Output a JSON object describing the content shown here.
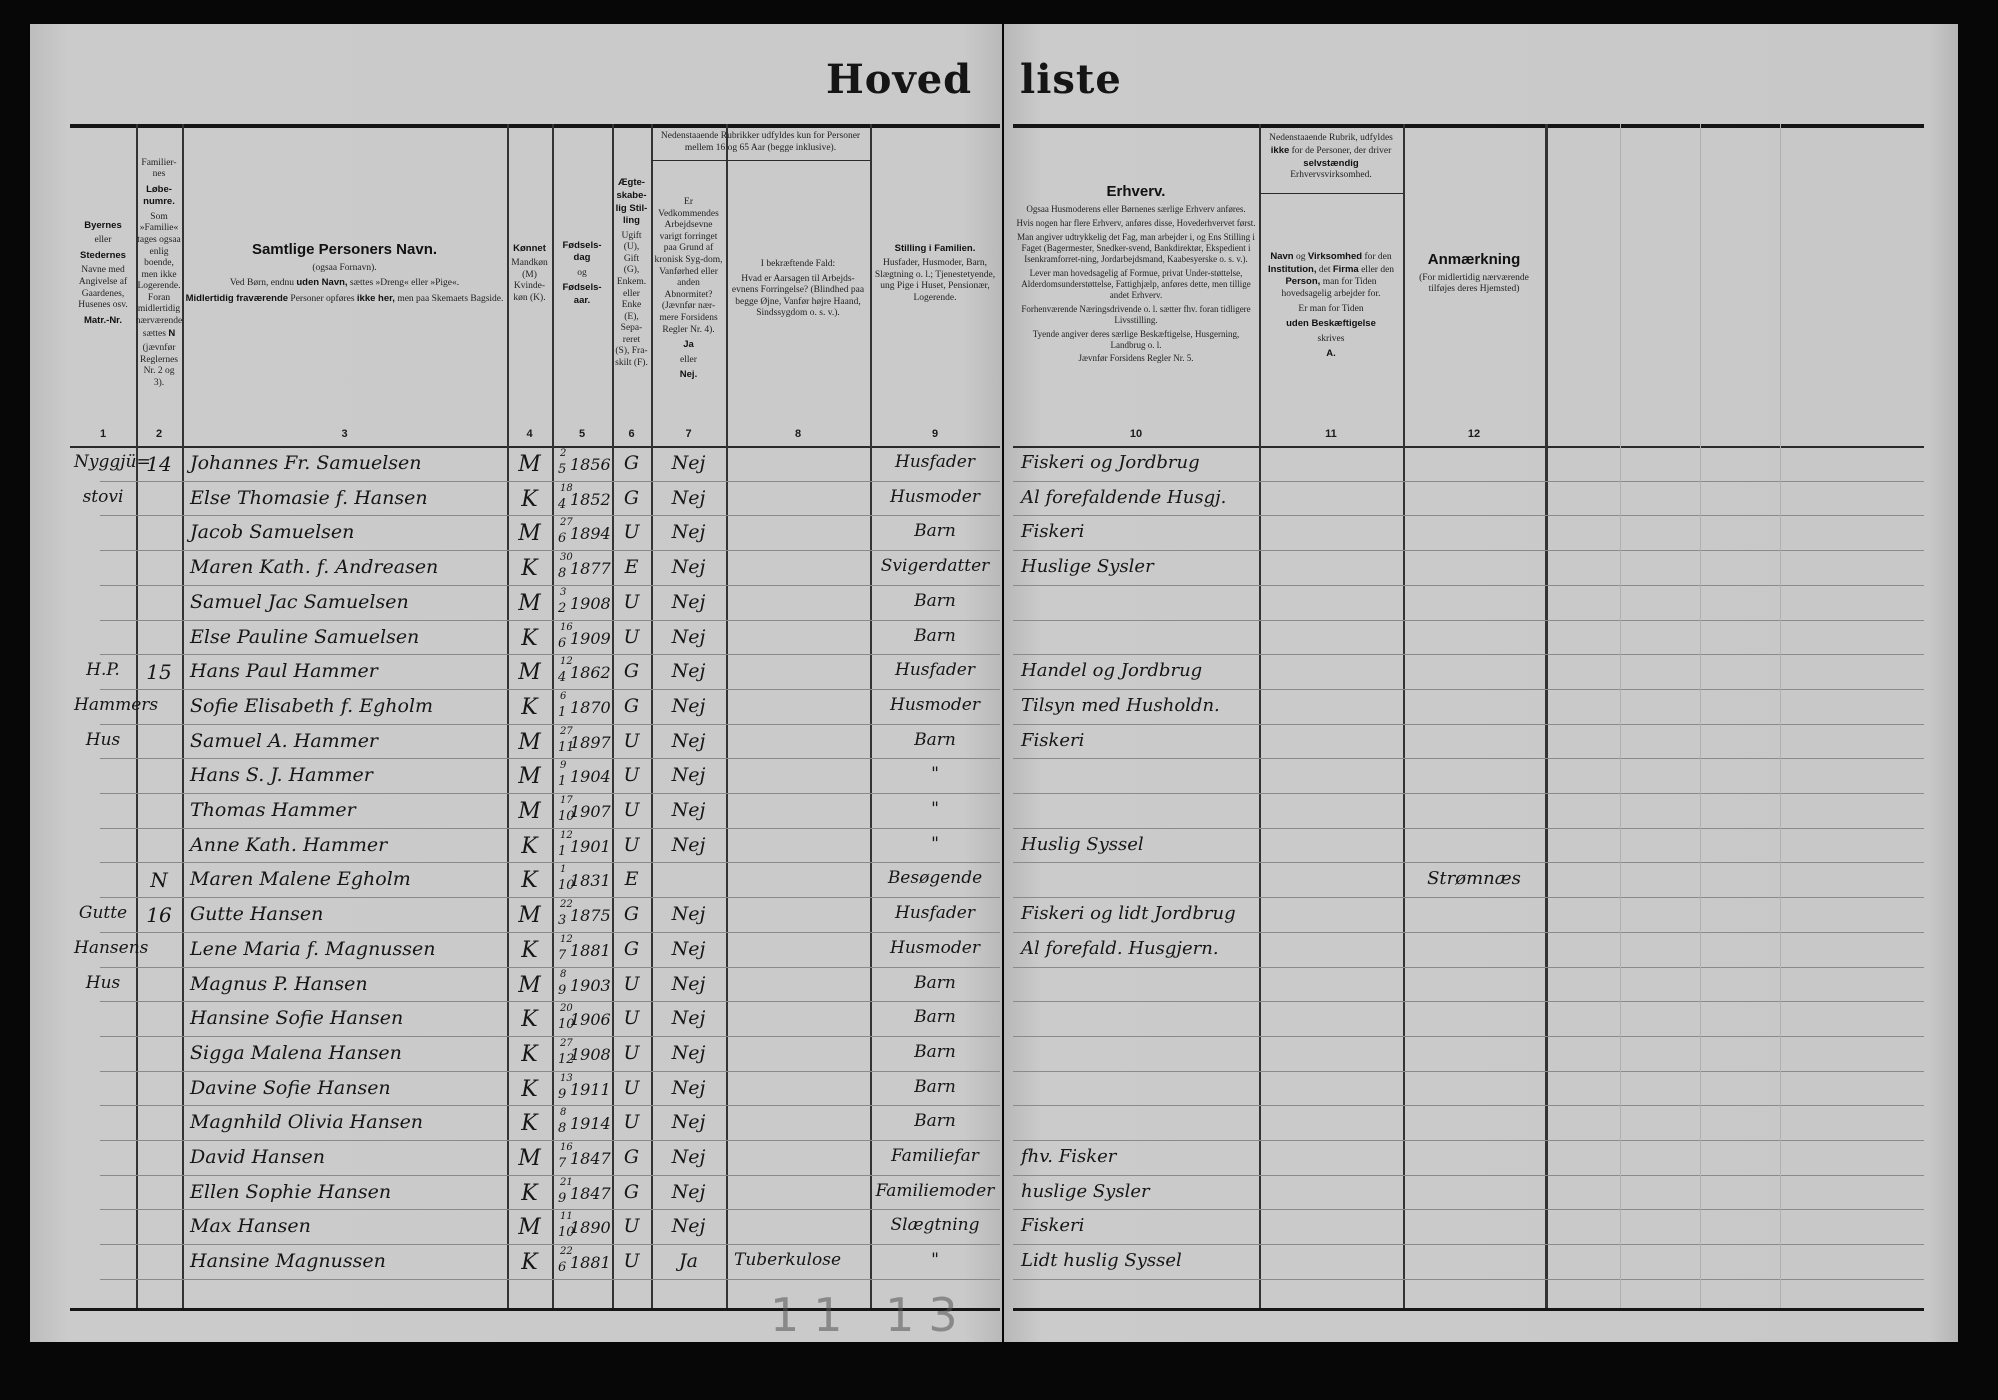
{
  "title": {
    "left": "Hoved",
    "right": "liste"
  },
  "columns": [
    {
      "num": "1",
      "header": [
        [
          {
            "t": "Byernes",
            "b": true
          }
        ],
        [
          {
            "t": "eller"
          }
        ],
        [
          {
            "t": "Stedernes",
            "b": true
          }
        ],
        [
          {
            "t": "Navne med Angivelse af Gaardenes, Husenes osv."
          }
        ],
        [
          {
            "t": "Matr.-Nr.",
            "b": true
          }
        ]
      ]
    },
    {
      "num": "2",
      "header": [
        [
          {
            "t": "Familier-nes"
          }
        ],
        [
          {
            "t": "Løbe-numre.",
            "b": true
          }
        ],
        [
          {
            "t": "Som »Familie« tages ogsaa enlig boende, men ikke Logerende. Foran midlertidig nærværende sættes "
          },
          {
            "t": "N",
            "b": true
          }
        ],
        [
          {
            "t": "(jævnfør Reglernes Nr. 2 og 3)."
          }
        ]
      ]
    },
    {
      "num": "3",
      "header": [
        [
          {
            "t": "Samtlige Personers Navn.",
            "b": true,
            "big": true
          }
        ],
        [
          {
            "t": "(ogsaa Fornavn)."
          }
        ],
        [
          {
            "t": "Ved Børn, endnu "
          },
          {
            "t": "uden Navn,",
            "b": true
          },
          {
            "t": " sættes »Dreng« eller »Pige«."
          }
        ],
        [
          {
            "t": "Midlertidig fraværende",
            "b": true
          },
          {
            "t": " Personer opføres "
          },
          {
            "t": "ikke her,",
            "b": true
          },
          {
            "t": " men paa Skemaets Bagside."
          }
        ]
      ]
    },
    {
      "num": "4",
      "header": [
        [
          {
            "t": "Kønnet",
            "b": true
          }
        ],
        [
          {
            "t": "Mandkøn (M) Kvinde-køn (K)."
          }
        ]
      ]
    },
    {
      "num": "5",
      "header": [
        [
          {
            "t": "Fødsels-dag",
            "b": true
          }
        ],
        [
          {
            "t": "og"
          }
        ],
        [
          {
            "t": "Fødsels-aar.",
            "b": true
          }
        ]
      ]
    },
    {
      "num": "6",
      "header": [
        [
          {
            "t": "Ægte-skabe-lig Stil-ling",
            "b": true
          }
        ],
        [
          {
            "t": "Ugift (U), Gift (G), Enkem. eller Enke (E), Sepa-reret (S), Fra-skilt (F)."
          }
        ]
      ]
    },
    {
      "num": "7",
      "header": [
        [
          {
            "t": "Er Vedkommendes Arbejdsevne varigt forringet paa Grund af kronisk Syg-dom, Vanførhed eller anden Abnormitet? (Jævnfør nær-mere Forsidens Regler Nr. 4)."
          }
        ],
        [
          {
            "t": "Ja",
            "b": true
          }
        ],
        [
          {
            "t": "eller"
          }
        ],
        [
          {
            "t": "Nej.",
            "b": true
          }
        ]
      ]
    },
    {
      "num": "8",
      "header": [
        [
          {
            "t": "I bekræftende Fald:"
          }
        ],
        [
          {
            "t": "Hvad er Aarsagen til Arbejds-evnens Forringelse? (Blindhed paa begge Øjne, Vanfør højre Haand, Sindssygdom o. s. v.)."
          }
        ]
      ]
    },
    {
      "num": "9",
      "header": [
        [
          {
            "t": "Stilling i Familien.",
            "b": true
          }
        ],
        [
          {
            "t": "Husfader, Husmoder, Barn, Slægtning o. l.; Tjenestetyende, ung Pige i Huset, Pensionær, Logerende."
          }
        ]
      ]
    },
    {
      "num": "10",
      "header": [
        [
          {
            "t": "Erhverv.",
            "b": true,
            "big": true
          }
        ],
        [
          {
            "t": "Ogsaa Husmoderens eller Børnenes særlige Erhverv anføres."
          }
        ],
        [
          {
            "t": "Hvis nogen har flere Erhverv, anføres disse, Hovederhvervet først."
          }
        ],
        [
          {
            "t": "Man angiver udtrykkelig det Fag, man arbejder i, og Ens Stilling i Faget (Bagermester, Snedker-svend, Bankdirektør, Ekspedient i Isenkramforret-ning, Jordarbejdsmand, Kaabesyerske o. s. v.)."
          }
        ],
        [
          {
            "t": "Lever man hovedsagelig af Formue, privat Under-støttelse, Alderdomsunderstøttelse, Fattighjælp, anføres dette, men tillige andet Erhverv."
          }
        ],
        [
          {
            "t": "Forhenværende Næringsdrivende o. l. sætter fhv. foran tidligere Livsstilling."
          }
        ],
        [
          {
            "t": "Tyende angiver deres særlige Beskæftigelse, Husgerning, Landbrug o. l."
          }
        ],
        [
          {
            "t": "Jævnfør Forsidens Regler Nr. 5."
          }
        ]
      ]
    },
    {
      "num": "11",
      "header": [
        [
          {
            "t": "Navn",
            "b": true
          },
          {
            "t": " og "
          },
          {
            "t": "Virksomhed",
            "b": true
          },
          {
            "t": " for den "
          },
          {
            "t": "Institution,",
            "b": true
          },
          {
            "t": " det "
          },
          {
            "t": "Firma",
            "b": true
          },
          {
            "t": " eller den "
          },
          {
            "t": "Person,",
            "b": true
          },
          {
            "t": " man for Tiden hovedsagelig arbejder for."
          }
        ],
        [
          {
            "t": "Er man for Tiden"
          }
        ],
        [
          {
            "t": "uden Beskæftigelse",
            "b": true
          }
        ],
        [
          {
            "t": "skrives"
          }
        ],
        [
          {
            "t": "A.",
            "b": true
          }
        ]
      ]
    },
    {
      "num": "12",
      "header": [
        [
          {
            "t": "Anmærkning",
            "b": true,
            "big": true
          }
        ],
        [
          {
            "t": "(For midlertidig nærværende tilføjes deres Hjemsted)"
          }
        ]
      ]
    }
  ],
  "group_headers": {
    "cols_7_8": "Nedenstaaende Rubrikker udfyldes kun for Personer mellem 16 og 65 Aar (begge inklusive).",
    "col_11": [
      [
        {
          "t": "Nedenstaaende Rubrik, udfyldes "
        },
        {
          "t": "ikke",
          "b": true
        },
        {
          "t": " for de Personer, der driver "
        },
        {
          "t": "selvstændig",
          "b": true
        },
        {
          "t": " Erhvervsvirksomhed."
        }
      ]
    ]
  },
  "rows": [
    {
      "place": "Nyggjü=",
      "family_no": "14",
      "name": "Johannes Fr. Samuelsen",
      "sex": "M",
      "day": "2",
      "month": "5",
      "year": "1856",
      "marital": "G",
      "impaired": "Nej",
      "cause": "",
      "position": "Husfader",
      "occupation": "Fiskeri og Jordbrug",
      "employer": "",
      "remark": ""
    },
    {
      "place": "stovi",
      "family_no": "",
      "name": "Else Thomasie f. Hansen",
      "sex": "K",
      "day": "18",
      "month": "4",
      "year": "1852",
      "marital": "G",
      "impaired": "Nej",
      "cause": "",
      "position": "Husmoder",
      "occupation": "Al forefaldende Husgj.",
      "employer": "",
      "remark": ""
    },
    {
      "place": "",
      "family_no": "",
      "name": "Jacob Samuelsen",
      "sex": "M",
      "day": "27",
      "month": "6",
      "year": "1894",
      "marital": "U",
      "impaired": "Nej",
      "cause": "",
      "position": "Barn",
      "occupation": "Fiskeri",
      "employer": "",
      "remark": ""
    },
    {
      "place": "",
      "family_no": "",
      "name": "Maren Kath. f. Andreasen",
      "sex": "K",
      "day": "30",
      "month": "8",
      "year": "1877",
      "marital": "E",
      "impaired": "Nej",
      "cause": "",
      "position": "Svigerdatter",
      "occupation": "Huslige Sysler",
      "employer": "",
      "remark": ""
    },
    {
      "place": "",
      "family_no": "",
      "name": "Samuel Jac Samuelsen",
      "sex": "M",
      "day": "3",
      "month": "2",
      "year": "1908",
      "marital": "U",
      "impaired": "Nej",
      "cause": "",
      "position": "Barn",
      "occupation": "",
      "employer": "",
      "remark": ""
    },
    {
      "place": "",
      "family_no": "",
      "name": "Else Pauline Samuelsen",
      "sex": "K",
      "day": "16",
      "month": "6",
      "year": "1909",
      "marital": "U",
      "impaired": "Nej",
      "cause": "",
      "position": "Barn",
      "occupation": "",
      "employer": "",
      "remark": ""
    },
    {
      "place": "H.P.",
      "family_no": "15",
      "name": "Hans Paul Hammer",
      "sex": "M",
      "day": "12",
      "month": "4",
      "year": "1862",
      "marital": "G",
      "impaired": "Nej",
      "cause": "",
      "position": "Husfader",
      "occupation": "Handel og Jordbrug",
      "employer": "",
      "remark": ""
    },
    {
      "place": "Hammers",
      "family_no": "",
      "name": "Sofie Elisabeth f. Egholm",
      "sex": "K",
      "day": "6",
      "month": "1",
      "year": "1870",
      "marital": "G",
      "impaired": "Nej",
      "cause": "",
      "position": "Husmoder",
      "occupation": "Tilsyn med Husholdn.",
      "employer": "",
      "remark": ""
    },
    {
      "place": "Hus",
      "family_no": "",
      "name": "Samuel A. Hammer",
      "sex": "M",
      "day": "27",
      "month": "11",
      "year": "1897",
      "marital": "U",
      "impaired": "Nej",
      "cause": "",
      "position": "Barn",
      "occupation": "Fiskeri",
      "employer": "",
      "remark": ""
    },
    {
      "place": "",
      "family_no": "",
      "name": "Hans S. J. Hammer",
      "sex": "M",
      "day": "9",
      "month": "1",
      "year": "1904",
      "marital": "U",
      "impaired": "Nej",
      "cause": "",
      "position": "\"",
      "occupation": "",
      "employer": "",
      "remark": ""
    },
    {
      "place": "",
      "family_no": "",
      "name": "Thomas Hammer",
      "sex": "M",
      "day": "17",
      "month": "10",
      "year": "1907",
      "marital": "U",
      "impaired": "Nej",
      "cause": "",
      "position": "\"",
      "occupation": "",
      "employer": "",
      "remark": ""
    },
    {
      "place": "",
      "family_no": "",
      "name": "Anne Kath. Hammer",
      "sex": "K",
      "day": "12",
      "month": "1",
      "year": "1901",
      "marital": "U",
      "impaired": "Nej",
      "cause": "",
      "position": "\"",
      "occupation": "Huslig Syssel",
      "employer": "",
      "remark": ""
    },
    {
      "place": "",
      "family_no": "N",
      "name": "Maren Malene Egholm",
      "sex": "K",
      "day": "1",
      "month": "10",
      "year": "1831",
      "marital": "E",
      "impaired": "",
      "cause": "",
      "position": "Besøgende",
      "occupation": "",
      "employer": "",
      "remark": "Strømnæs"
    },
    {
      "place": "Gutte",
      "family_no": "16",
      "name": "Gutte Hansen",
      "sex": "M",
      "day": "22",
      "month": "3",
      "year": "1875",
      "marital": "G",
      "impaired": "Nej",
      "cause": "",
      "position": "Husfader",
      "occupation": "Fiskeri og lidt Jordbrug",
      "employer": "",
      "remark": ""
    },
    {
      "place": "Hansens",
      "family_no": "",
      "name": "Lene Maria f. Magnussen",
      "sex": "K",
      "day": "12",
      "month": "7",
      "year": "1881",
      "marital": "G",
      "impaired": "Nej",
      "cause": "",
      "position": "Husmoder",
      "occupation": "Al forefald. Husgjern.",
      "employer": "",
      "remark": ""
    },
    {
      "place": "Hus",
      "family_no": "",
      "name": "Magnus P. Hansen",
      "sex": "M",
      "day": "8",
      "month": "9",
      "year": "1903",
      "marital": "U",
      "impaired": "Nej",
      "cause": "",
      "position": "Barn",
      "occupation": "",
      "employer": "",
      "remark": ""
    },
    {
      "place": "",
      "family_no": "",
      "name": "Hansine Sofie Hansen",
      "sex": "K",
      "day": "20",
      "month": "10",
      "year": "1906",
      "marital": "U",
      "impaired": "Nej",
      "cause": "",
      "position": "Barn",
      "occupation": "",
      "employer": "",
      "remark": ""
    },
    {
      "place": "",
      "family_no": "",
      "name": "Sigga Malena Hansen",
      "sex": "K",
      "day": "27",
      "month": "12",
      "year": "1908",
      "marital": "U",
      "impaired": "Nej",
      "cause": "",
      "position": "Barn",
      "occupation": "",
      "employer": "",
      "remark": ""
    },
    {
      "place": "",
      "family_no": "",
      "name": "Davine Sofie Hansen",
      "sex": "K",
      "day": "13",
      "month": "9",
      "year": "1911",
      "marital": "U",
      "impaired": "Nej",
      "cause": "",
      "position": "Barn",
      "occupation": "",
      "employer": "",
      "remark": ""
    },
    {
      "place": "",
      "family_no": "",
      "name": "Magnhild Olivia Hansen",
      "sex": "K",
      "day": "8",
      "month": "8",
      "year": "1914",
      "marital": "U",
      "impaired": "Nej",
      "cause": "",
      "position": "Barn",
      "occupation": "",
      "employer": "",
      "remark": ""
    },
    {
      "place": "",
      "family_no": "",
      "name": "David Hansen",
      "sex": "M",
      "day": "16",
      "month": "7",
      "year": "1847",
      "marital": "G",
      "impaired": "Nej",
      "cause": "",
      "position": "Familiefar",
      "occupation": "fhv. Fisker",
      "employer": "",
      "remark": ""
    },
    {
      "place": "",
      "family_no": "",
      "name": "Ellen Sophie Hansen",
      "sex": "K",
      "day": "21",
      "month": "9",
      "year": "1847",
      "marital": "G",
      "impaired": "Nej",
      "cause": "",
      "position": "Familiemoder",
      "occupation": "huslige Sysler",
      "employer": "",
      "remark": ""
    },
    {
      "place": "",
      "family_no": "",
      "name": "Max Hansen",
      "sex": "M",
      "day": "11",
      "month": "10",
      "year": "1890",
      "marital": "U",
      "impaired": "Nej",
      "cause": "",
      "position": "Slægtning",
      "occupation": "Fiskeri",
      "employer": "",
      "remark": ""
    },
    {
      "place": "",
      "family_no": "",
      "name": "Hansine Magnussen",
      "sex": "K",
      "day": "22",
      "month": "6",
      "year": "1881",
      "marital": "U",
      "impaired": "Ja",
      "cause": "Tuberkulose",
      "position": "\"",
      "occupation": "Lidt huslig Syssel",
      "employer": "",
      "remark": ""
    }
  ],
  "pencil_note": "11 13"
}
